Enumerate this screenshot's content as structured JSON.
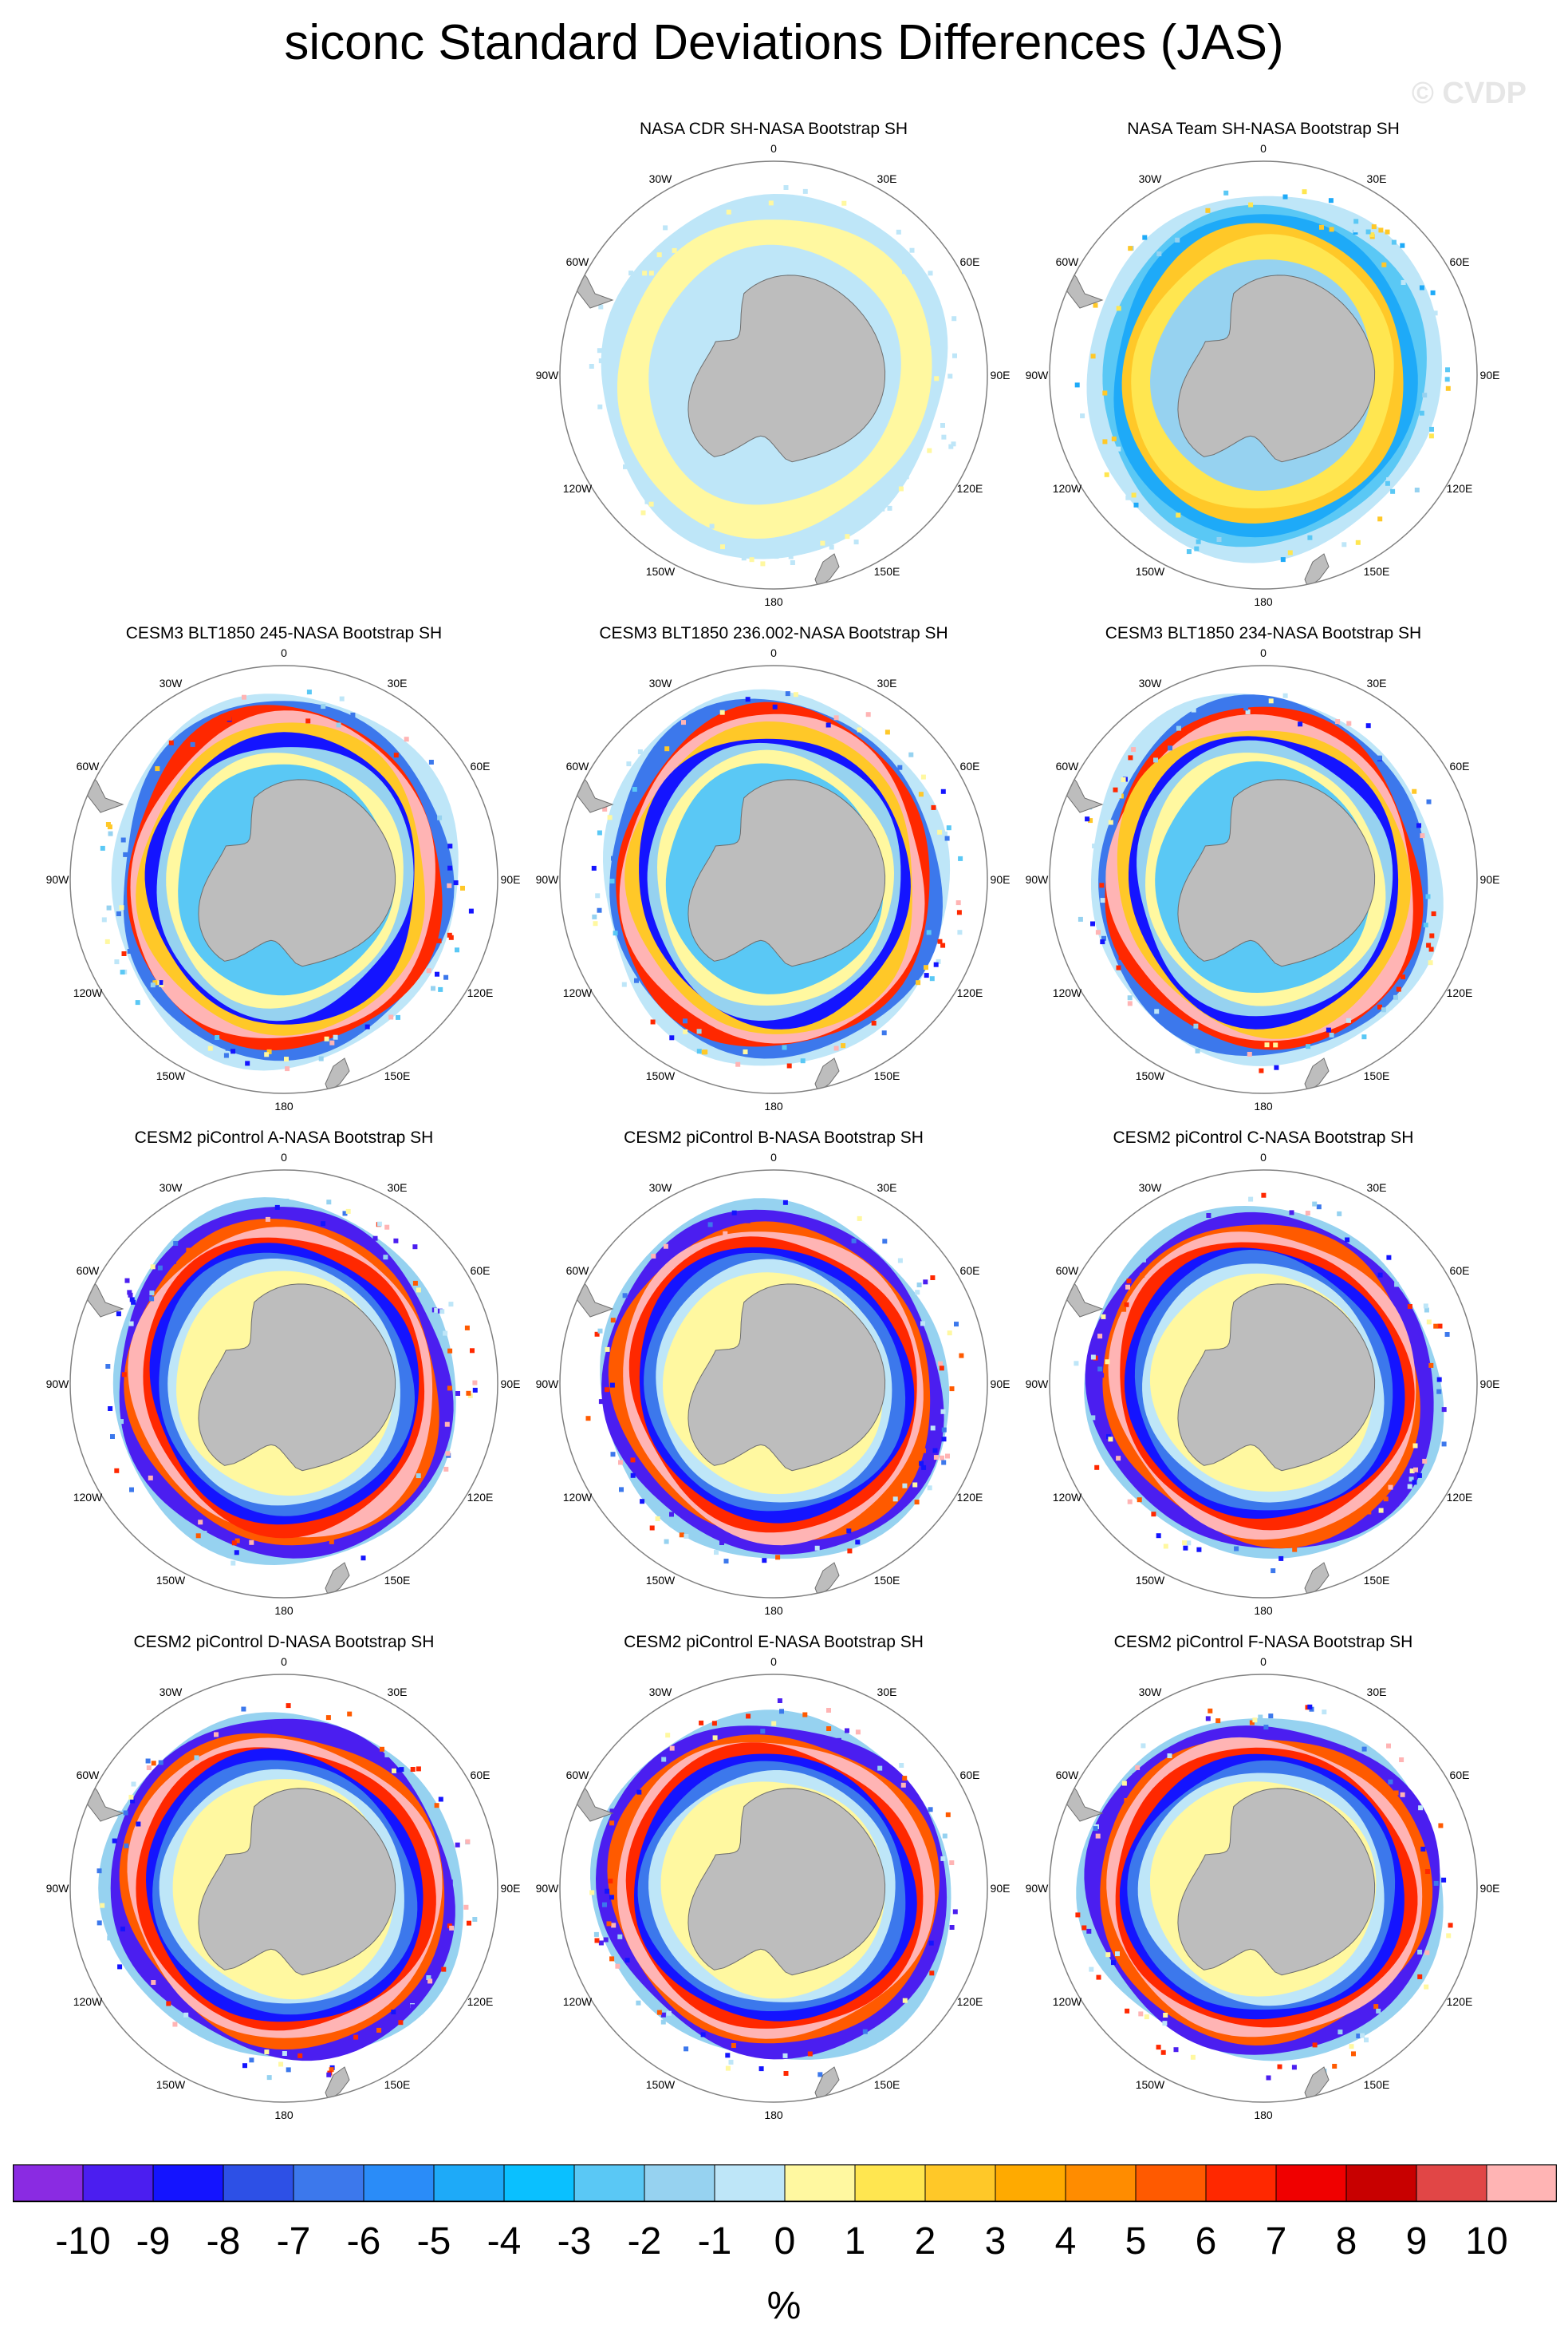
{
  "title": "siconc Standard Deviations Differences (JAS)",
  "watermark": "© CVDP",
  "units": "%",
  "longitude_labels": [
    "0",
    "30E",
    "60E",
    "90E",
    "120E",
    "150E",
    "180",
    "150W",
    "120W",
    "90W",
    "60W",
    "30W"
  ],
  "colorbar": {
    "labels": [
      "-10",
      "-9",
      "-8",
      "-7",
      "-6",
      "-5",
      "-4",
      "-3",
      "-2",
      "-1",
      "0",
      "1",
      "2",
      "3",
      "4",
      "5",
      "6",
      "7",
      "8",
      "9",
      "10"
    ],
    "colors": [
      "#8a2be2",
      "#4b1ef0",
      "#1414ff",
      "#2d50e6",
      "#3c78ec",
      "#2a8cf8",
      "#1eaaf8",
      "#0ac0ff",
      "#5ac8f5",
      "#96d2f0",
      "#bee6f8",
      "#fff8a0",
      "#ffe650",
      "#ffc828",
      "#ffaa00",
      "#ff8c00",
      "#ff5a00",
      "#ff2800",
      "#f00000",
      "#c80000",
      "#e14646",
      "#ffb4b4"
    ]
  },
  "panels": [
    {
      "title": "NASA CDR SH-NASA Bootstrap SH",
      "style": "cdr"
    },
    {
      "title": "NASA Team SH-NASA Bootstrap SH",
      "style": "team"
    },
    {
      "title": "CESM3 BLT1850 245-NASA Bootstrap SH",
      "style": "cesm3"
    },
    {
      "title": "CESM3 BLT1850 236.002-NASA Bootstrap SH",
      "style": "cesm3"
    },
    {
      "title": "CESM3 BLT1850 234-NASA Bootstrap SH",
      "style": "cesm3"
    },
    {
      "title": "CESM2 piControl A-NASA Bootstrap SH",
      "style": "cesm2"
    },
    {
      "title": "CESM2 piControl B-NASA Bootstrap SH",
      "style": "cesm2"
    },
    {
      "title": "CESM2 piControl C-NASA Bootstrap SH",
      "style": "cesm2"
    },
    {
      "title": "CESM2 piControl D-NASA Bootstrap SH",
      "style": "cesm2"
    },
    {
      "title": "CESM2 piControl E-NASA Bootstrap SH",
      "style": "cesm2"
    },
    {
      "title": "CESM2 piControl F-NASA Bootstrap SH",
      "style": "cesm2"
    }
  ]
}
